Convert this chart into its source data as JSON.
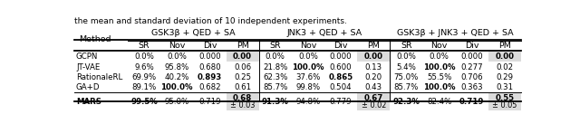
{
  "col_groups": [
    {
      "label": "GSK3β + QED + SA",
      "cols": [
        "SR",
        "Nov",
        "Div",
        "PM"
      ]
    },
    {
      "label": "JNK3 + QED + SA",
      "cols": [
        "SR",
        "Nov",
        "Div",
        "PM"
      ]
    },
    {
      "label": "GSK3β + JNK3 + QED + SA",
      "cols": [
        "SR",
        "Nov",
        "Div",
        "PM"
      ]
    }
  ],
  "methods": [
    "GCPN",
    "JT-VAE",
    "RationaleRL",
    "GA+D",
    "MARS"
  ],
  "data": {
    "GCPN": [
      "0.0%",
      "0.0%",
      "0.000",
      "0.00",
      "0.0%",
      "0.0%",
      "0.000",
      "0.00",
      "0.0%",
      "0.0%",
      "0.000",
      "0.00"
    ],
    "JT-VAE": [
      "9.6%",
      "95.8%",
      "0.680",
      "0.06",
      "21.8%",
      "100.0%",
      "0.600",
      "0.13",
      "5.4%",
      "100.0%",
      "0.277",
      "0.02"
    ],
    "RationaleRL": [
      "69.9%",
      "40.2%",
      "0.893",
      "0.25",
      "62.3%",
      "37.6%",
      "0.865",
      "0.20",
      "75.0%",
      "55.5%",
      "0.706",
      "0.29"
    ],
    "GA+D": [
      "89.1%",
      "100.0%",
      "0.682",
      "0.61",
      "85.7%",
      "99.8%",
      "0.504",
      "0.43",
      "85.7%",
      "100.0%",
      "0.363",
      "0.31"
    ],
    "MARS": [
      "99.5%",
      "95.0%",
      "0.719",
      "0.68",
      "91.3%",
      "94.8%",
      "0.779",
      "0.67",
      "92.3%",
      "82.4%",
      "0.719",
      "0.55"
    ]
  },
  "mars_pm": [
    "",
    "",
    "",
    "± 0.03",
    "",
    "",
    "",
    "± 0.02",
    "",
    "",
    "",
    "± 0.05"
  ],
  "bold": {
    "GCPN": [
      false,
      false,
      false,
      true,
      false,
      false,
      false,
      true,
      false,
      false,
      false,
      true
    ],
    "JT-VAE": [
      false,
      false,
      false,
      false,
      false,
      true,
      false,
      false,
      false,
      true,
      false,
      false
    ],
    "RationaleRL": [
      false,
      false,
      true,
      false,
      false,
      false,
      true,
      false,
      false,
      false,
      false,
      false
    ],
    "GA+D": [
      false,
      true,
      false,
      false,
      false,
      false,
      false,
      false,
      false,
      true,
      false,
      false
    ],
    "MARS": [
      true,
      false,
      false,
      true,
      true,
      false,
      false,
      true,
      true,
      false,
      true,
      true
    ]
  },
  "highlight": {
    "GCPN": [
      false,
      false,
      false,
      true,
      false,
      false,
      false,
      true,
      false,
      false,
      false,
      true
    ],
    "JT-VAE": [
      false,
      false,
      false,
      false,
      false,
      false,
      false,
      false,
      false,
      false,
      false,
      false
    ],
    "RationaleRL": [
      false,
      false,
      false,
      false,
      false,
      false,
      false,
      false,
      false,
      false,
      false,
      false
    ],
    "GA+D": [
      false,
      false,
      false,
      false,
      false,
      false,
      false,
      false,
      false,
      false,
      false,
      false
    ],
    "MARS": [
      false,
      false,
      false,
      true,
      false,
      false,
      false,
      true,
      false,
      false,
      false,
      true
    ]
  },
  "highlight_color": "#dcdcdc",
  "top_text": "the mean and standard deviation of 10 independent experiments."
}
